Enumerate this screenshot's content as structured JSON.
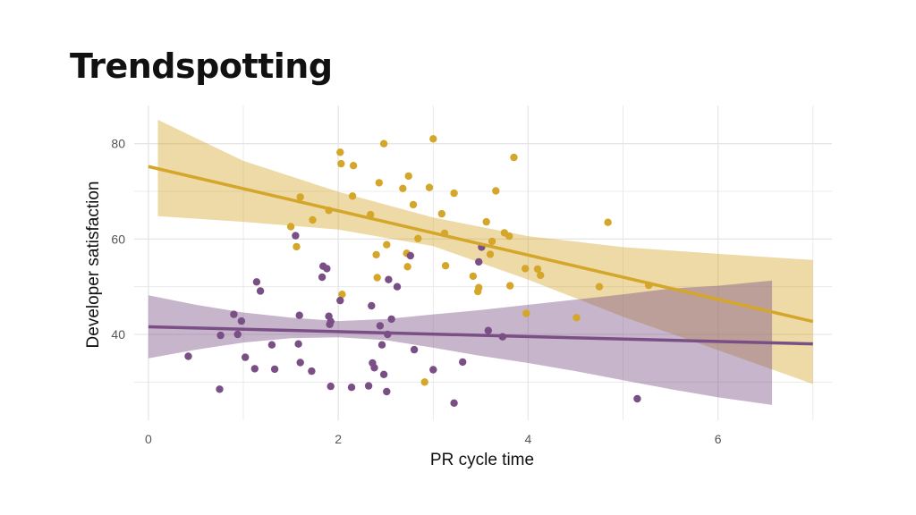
{
  "title": "Trendspotting",
  "colors": {
    "group_a": "#d4a62a",
    "group_b": "#7a4f86",
    "grid": "#e6e6e6"
  },
  "chart_data": {
    "type": "scatter",
    "title": "Trendspotting",
    "xlabel": "PR cycle time",
    "ylabel": "Developer satisfaction",
    "xlim": [
      -0.15,
      7.2
    ],
    "ylim": [
      22,
      88
    ],
    "x_ticks": [
      0,
      2,
      4,
      6
    ],
    "y_ticks": [
      40,
      60,
      80
    ],
    "grid": true,
    "legend": "none",
    "series": [
      {
        "color": "#d4a62a",
        "points": [
          [
            1.5,
            62.6
          ],
          [
            1.56,
            58.4
          ],
          [
            1.6,
            68.8
          ],
          [
            1.73,
            64
          ],
          [
            1.9,
            66
          ],
          [
            2.02,
            78.2
          ],
          [
            2.03,
            75.8
          ],
          [
            2.04,
            48.4
          ],
          [
            2.15,
            69
          ],
          [
            2.16,
            75.4
          ],
          [
            2.34,
            65.1
          ],
          [
            2.4,
            56.7
          ],
          [
            2.41,
            51.9
          ],
          [
            2.43,
            71.8
          ],
          [
            2.48,
            80
          ],
          [
            2.51,
            58.8
          ],
          [
            2.68,
            70.6
          ],
          [
            2.72,
            57
          ],
          [
            2.73,
            54.2
          ],
          [
            2.74,
            73.2
          ],
          [
            2.79,
            67.2
          ],
          [
            2.84,
            60.1
          ],
          [
            2.91,
            30
          ],
          [
            2.96,
            70.8
          ],
          [
            3.0,
            81
          ],
          [
            3.09,
            65.3
          ],
          [
            3.12,
            61.2
          ],
          [
            3.13,
            54.4
          ],
          [
            3.22,
            69.6
          ],
          [
            3.42,
            52.2
          ],
          [
            3.47,
            49
          ],
          [
            3.48,
            49.8
          ],
          [
            3.56,
            63.6
          ],
          [
            3.6,
            56.8
          ],
          [
            3.62,
            59.5
          ],
          [
            3.66,
            70.1
          ],
          [
            3.75,
            61.3
          ],
          [
            3.8,
            60.6
          ],
          [
            3.81,
            50.2
          ],
          [
            3.85,
            77.1
          ],
          [
            3.97,
            53.8
          ],
          [
            3.98,
            44.4
          ],
          [
            4.1,
            53.7
          ],
          [
            4.13,
            52.4
          ],
          [
            4.51,
            43.5
          ],
          [
            4.75,
            50
          ],
          [
            4.84,
            63.5
          ],
          [
            5.27,
            50.3
          ]
        ],
        "trend": {
          "start": [
            0.0,
            75.2
          ],
          "end": [
            7.0,
            42.7
          ]
        },
        "band": {
          "x": [
            0.1,
            1.0,
            2.0,
            3.0,
            4.0,
            5.0,
            6.0,
            7.0
          ],
          "upper": [
            85,
            76.4,
            69.9,
            64.5,
            60.6,
            58.3,
            56.9,
            55.6
          ],
          "lower": [
            64.8,
            63.6,
            62,
            58.5,
            51.5,
            43.7,
            36.7,
            29.6
          ]
        }
      },
      {
        "color": "#7a4f86",
        "points": [
          [
            0.42,
            35.4
          ],
          [
            0.75,
            28.5
          ],
          [
            0.76,
            39.8
          ],
          [
            0.9,
            44.2
          ],
          [
            0.94,
            40
          ],
          [
            0.98,
            42.8
          ],
          [
            1.02,
            35.2
          ],
          [
            1.12,
            32.8
          ],
          [
            1.14,
            51
          ],
          [
            1.18,
            49.1
          ],
          [
            1.3,
            37.8
          ],
          [
            1.33,
            32.7
          ],
          [
            1.55,
            60.7
          ],
          [
            1.58,
            38
          ],
          [
            1.59,
            44
          ],
          [
            1.6,
            34.1
          ],
          [
            1.72,
            32.3
          ],
          [
            1.83,
            52
          ],
          [
            1.84,
            54.3
          ],
          [
            1.88,
            53.8
          ],
          [
            1.9,
            43.8
          ],
          [
            1.91,
            42.1
          ],
          [
            1.92,
            42.7
          ],
          [
            1.92,
            29.1
          ],
          [
            2.02,
            47.1
          ],
          [
            2.14,
            28.9
          ],
          [
            2.32,
            29.2
          ],
          [
            2.35,
            46
          ],
          [
            2.36,
            34
          ],
          [
            2.38,
            33
          ],
          [
            2.44,
            41.8
          ],
          [
            2.46,
            37.8
          ],
          [
            2.48,
            31.6
          ],
          [
            2.51,
            28
          ],
          [
            2.52,
            40
          ],
          [
            2.53,
            51.5
          ],
          [
            2.56,
            43.2
          ],
          [
            2.62,
            50
          ],
          [
            2.76,
            56.5
          ],
          [
            2.8,
            36.8
          ],
          [
            3.0,
            32.6
          ],
          [
            3.22,
            25.6
          ],
          [
            3.31,
            34.2
          ],
          [
            3.48,
            55.2
          ],
          [
            3.51,
            58.3
          ],
          [
            3.58,
            40.8
          ],
          [
            3.73,
            39.5
          ],
          [
            5.15,
            26.5
          ]
        ],
        "trend": {
          "start": [
            0.0,
            41.6
          ],
          "end": [
            7.0,
            38.0
          ]
        },
        "band": {
          "x": [
            0.0,
            0.5,
            1.0,
            1.5,
            2.0,
            2.5,
            3.0,
            3.5,
            4.0,
            4.5,
            5.0,
            5.5,
            6.0,
            6.57
          ],
          "upper": [
            48.2,
            46.2,
            44.6,
            43.5,
            42.8,
            43.2,
            44.2,
            45.1,
            46.2,
            47.3,
            48.4,
            49.6,
            50.2,
            51.3
          ],
          "lower": [
            35,
            36.8,
            38.3,
            39.2,
            39.4,
            38.8,
            37.2,
            35.5,
            34,
            32.3,
            30.4,
            28.5,
            26.8,
            25.2
          ]
        }
      }
    ]
  }
}
